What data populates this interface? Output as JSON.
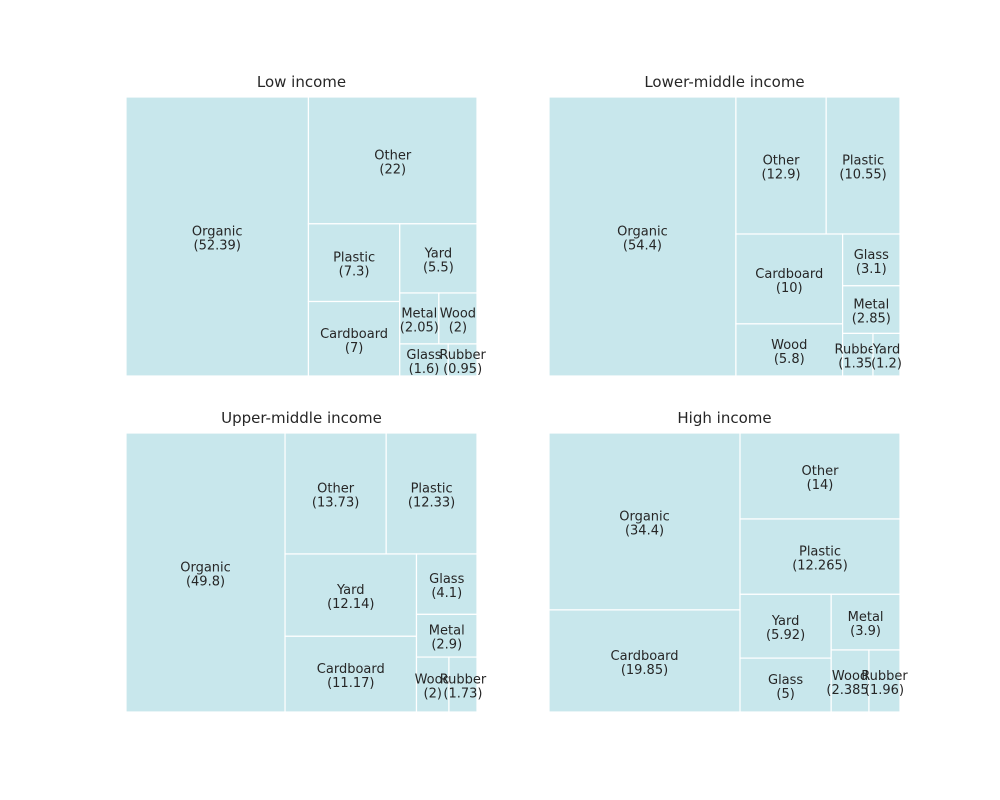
{
  "chart_data": [
    {
      "type": "treemap",
      "title": "Low income",
      "cells": [
        {
          "name": "Organic",
          "value": 52.39
        },
        {
          "name": "Plastic",
          "value": 7.3
        },
        {
          "name": "Yard",
          "value": 5.5
        },
        {
          "name": "Cardboard",
          "value": 7.0
        },
        {
          "name": "Rubber",
          "value": 0.95
        },
        {
          "name": "Wood",
          "value": 2.0
        },
        {
          "name": "Other",
          "value": 22.0
        },
        {
          "name": "Glass",
          "value": 1.6
        },
        {
          "name": "Metal",
          "value": 2.05
        }
      ]
    },
    {
      "type": "treemap",
      "title": "Lower-middle income",
      "cells": [
        {
          "name": "Organic",
          "value": 54.4
        },
        {
          "name": "Rubber",
          "value": 1.35
        },
        {
          "name": "Wood",
          "value": 5.8
        },
        {
          "name": "Yard",
          "value": 1.2
        },
        {
          "name": "Cardboard",
          "value": 10.0
        },
        {
          "name": "Plastic",
          "value": 10.55
        },
        {
          "name": "Other",
          "value": 12.9
        },
        {
          "name": "Glass",
          "value": 3.1
        },
        {
          "name": "Metal",
          "value": 2.85
        }
      ]
    },
    {
      "type": "treemap",
      "title": "Upper-middle income",
      "cells": [
        {
          "name": "Organic",
          "value": 49.8
        },
        {
          "name": "Plastic",
          "value": 12.33
        },
        {
          "name": "Yard",
          "value": 12.14
        },
        {
          "name": "Rubber",
          "value": 1.73
        },
        {
          "name": "Wood",
          "value": 2.0
        },
        {
          "name": "Other",
          "value": 13.73
        },
        {
          "name": "Cardboard",
          "value": 11.17
        },
        {
          "name": "Glass",
          "value": 4.1
        },
        {
          "name": "Metal",
          "value": 2.9
        }
      ]
    },
    {
      "type": "treemap",
      "title": "High income",
      "cells": [
        {
          "name": "Organic",
          "value": 34.4
        },
        {
          "name": "Plastic",
          "value": 12.265
        },
        {
          "name": "Yard",
          "value": 5.92
        },
        {
          "name": "Rubber",
          "value": 1.96
        },
        {
          "name": "Wood",
          "value": 2.385
        },
        {
          "name": "Other",
          "value": 14.0
        },
        {
          "name": "Cardboard",
          "value": 19.85
        },
        {
          "name": "Glass",
          "value": 5.0
        },
        {
          "name": "Metal",
          "value": 3.9
        }
      ]
    }
  ],
  "colors": {
    "cell_fill": "#c8e7ec",
    "cell_border": "#ffffff",
    "text": "#262626"
  }
}
